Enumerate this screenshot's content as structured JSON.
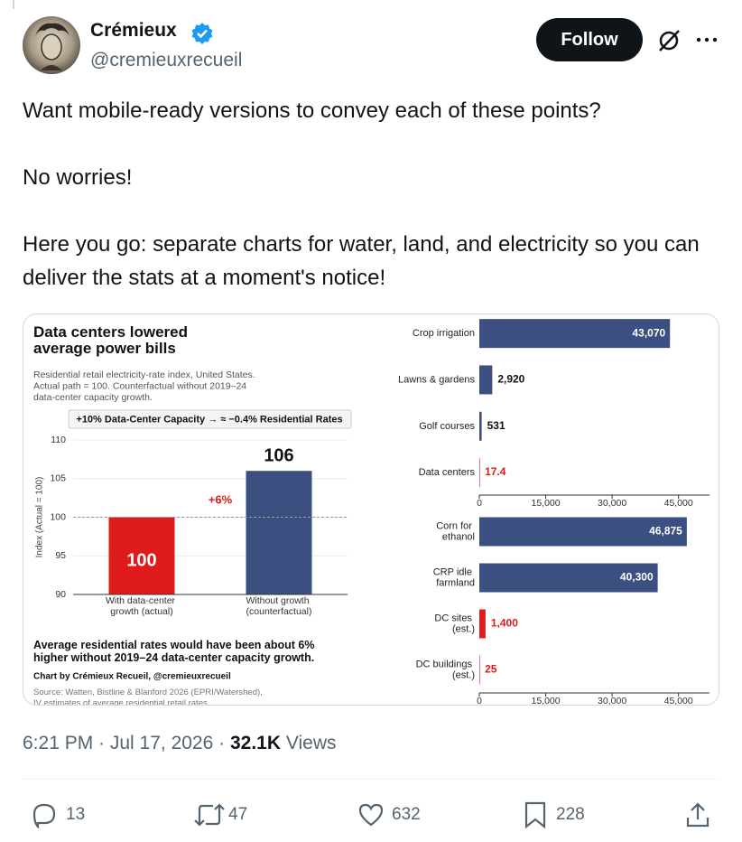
{
  "author": {
    "name": "Crémieux",
    "handle": "@cremieuxrecueil"
  },
  "follow_button": "Follow",
  "text": [
    "Want mobile-ready versions to convey each of these points?",
    "No worries!",
    "Here you go: separate charts for water, land, and electricity so you can deliver the stats at a moment's notice!"
  ],
  "chart_data": [
    {
      "type": "bar",
      "title": "Data centers lowered average power bills",
      "subtitle": "Residential retail electricity-rate index, United States. Actual path = 100. Counterfactual without 2019–24 data-center capacity growth.",
      "callout": "+10% Data-Center Capacity → ≈ −0.4% Residential Rates",
      "y_label": "Index (Actual = 100)",
      "categories": [
        "With data-center growth (actual)",
        "Without growth (counterfactual)"
      ],
      "values": [
        100,
        106
      ],
      "colors": [
        "#df1b1b",
        "#3b4f81"
      ],
      "ylim": [
        90,
        110
      ],
      "yticks": [
        90,
        95,
        100,
        105,
        110
      ],
      "grid": true,
      "reference_line": 100,
      "annotation": "+6%",
      "note": "Average residential rates would have been about 6% higher without 2019–24 data-center capacity growth.",
      "credit": "Chart by Crémieux Recueil, @cremieuxrecueil",
      "source": "Source: Watten, Bistline & Blanford 2026 (EPRI/Watershed), IV estimates of average residential retail rates"
    },
    {
      "type": "bar",
      "horizontal": true,
      "categories": [
        "Crop irrigation",
        "Lawns & gardens",
        "Golf courses",
        "Data centers"
      ],
      "values": [
        43070,
        2920,
        531,
        17.4
      ],
      "value_labels": [
        "43,070",
        "2,920",
        "531",
        "17.4"
      ],
      "colors": [
        "#3b4f81",
        "#3b4f81",
        "#3b4f81",
        "#df1b1b"
      ],
      "value_label_colors": [
        "#ffffff",
        "#111111",
        "#111111",
        "#df1b1b"
      ],
      "xlim": [
        0,
        52000
      ],
      "xticks": [
        0,
        {
          "value": 15000,
          "label": "15,000"
        },
        {
          "value": 30000,
          "label": "30,000"
        },
        {
          "value": 45000,
          "label": "45,000"
        }
      ]
    },
    {
      "type": "bar",
      "horizontal": true,
      "categories": [
        "Corn for ethanol",
        "CRP idle farmland",
        "DC sites (est.)",
        "DC buildings (est.)"
      ],
      "values": [
        46875,
        40300,
        1400,
        25
      ],
      "value_labels": [
        "46,875",
        "40,300",
        "1,400",
        "25"
      ],
      "colors": [
        "#3b4f81",
        "#3b4f81",
        "#df1b1b",
        "#df1b1b"
      ],
      "value_label_colors": [
        "#ffffff",
        "#ffffff",
        "#df1b1b",
        "#df1b1b"
      ],
      "xlim": [
        0,
        52000
      ],
      "xticks": [
        0,
        {
          "value": 15000,
          "label": "15,000"
        },
        {
          "value": 30000,
          "label": "30,000"
        },
        {
          "value": 45000,
          "label": "45,000"
        }
      ]
    }
  ],
  "meta": {
    "time": "6:21 PM · Jul 17, 2026 ·",
    "views_count": "32.1K",
    "views_label": "Views"
  },
  "actions": {
    "replies": 13,
    "reposts": 47,
    "likes": 632,
    "bookmarks": 228
  }
}
